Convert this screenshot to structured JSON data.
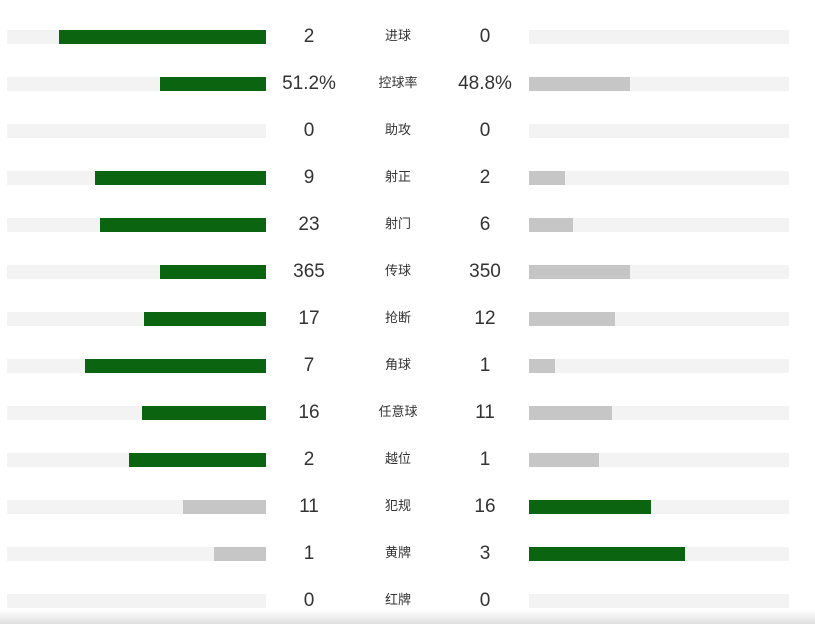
{
  "colors": {
    "leader": "#0a6410",
    "trailer": "#c6c6c6",
    "track": "#f3f3f3",
    "text": "#333333"
  },
  "stats": [
    {
      "label": "进球",
      "home": "2",
      "away": "0"
    },
    {
      "label": "控球率",
      "home": "51.2%",
      "away": "48.8%"
    },
    {
      "label": "助攻",
      "home": "0",
      "away": "0"
    },
    {
      "label": "射正",
      "home": "9",
      "away": "2"
    },
    {
      "label": "射门",
      "home": "23",
      "away": "6"
    },
    {
      "label": "传球",
      "home": "365",
      "away": "350"
    },
    {
      "label": "抢断",
      "home": "17",
      "away": "12"
    },
    {
      "label": "角球",
      "home": "7",
      "away": "1"
    },
    {
      "label": "任意球",
      "home": "16",
      "away": "11"
    },
    {
      "label": "越位",
      "home": "2",
      "away": "1"
    },
    {
      "label": "犯规",
      "home": "11",
      "away": "16"
    },
    {
      "label": "黄牌",
      "home": "1",
      "away": "3"
    },
    {
      "label": "红牌",
      "home": "0",
      "away": "0"
    }
  ],
  "chart_data": {
    "type": "bar",
    "categories": [
      "进球",
      "控球率",
      "助攻",
      "射正",
      "射门",
      "传球",
      "抢断",
      "角球",
      "任意球",
      "越位",
      "犯规",
      "黄牌",
      "红牌"
    ],
    "series": [
      {
        "values": [
          2,
          51.2,
          0,
          9,
          23,
          365,
          17,
          7,
          16,
          2,
          11,
          1,
          0
        ]
      },
      {
        "values": [
          0,
          48.8,
          0,
          2,
          6,
          350,
          12,
          1,
          11,
          1,
          16,
          3,
          0
        ]
      }
    ],
    "bar_fill_fraction": {
      "home": [
        0.8,
        0.41,
        0,
        0.66,
        0.64,
        0.41,
        0.47,
        0.7,
        0.48,
        0.53,
        0.32,
        0.2,
        0
      ],
      "away": [
        0,
        0.39,
        0,
        0.14,
        0.17,
        0.39,
        0.33,
        0.1,
        0.32,
        0.27,
        0.47,
        0.6,
        0
      ]
    }
  }
}
